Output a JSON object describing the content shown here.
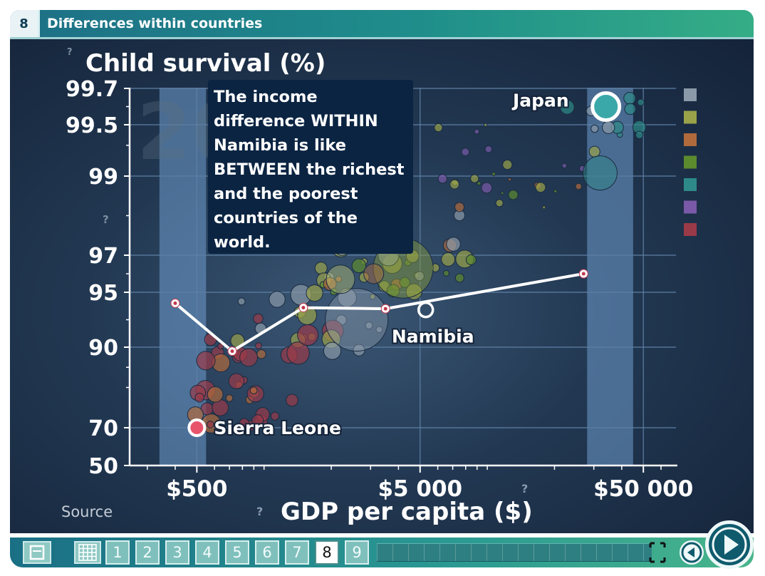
{
  "header": {
    "slide_number": "8",
    "title": "Differences within countries"
  },
  "chart_data": {
    "type": "scatter",
    "title": "",
    "ylabel": "Child survival (%)",
    "xlabel": "GDP per capita ($)",
    "x_scale": "log",
    "xlim": [
      250,
      70000
    ],
    "y_ticks": [
      "99.7",
      "99.5",
      "99",
      "97",
      "95",
      "90",
      "70",
      "50"
    ],
    "x_ticks": [
      "$500",
      "$5 000",
      "$50 000"
    ],
    "background_year": "20",
    "source_label": "Source",
    "help_marks": [
      "?",
      "?",
      "?",
      "?"
    ],
    "line_series": {
      "name": "Namibia income groups",
      "points": [
        {
          "x": 400,
          "y": 94
        },
        {
          "x": 720,
          "y": 89
        },
        {
          "x": 1500,
          "y": 93.6
        },
        {
          "x": 3500,
          "y": 93.5
        },
        {
          "x": 27000,
          "y": 96
        }
      ]
    },
    "labeled_points": [
      {
        "label": "Japan",
        "x": 34000,
        "y": 99.6,
        "color": "#3aa8a8"
      },
      {
        "label": "Namibia",
        "x": 5300,
        "y": 93.4,
        "color": "#ffffff"
      },
      {
        "label": "Sierra Leone",
        "x": 500,
        "y": 70,
        "color": "#e8546c"
      }
    ],
    "highlight_bands": [
      {
        "x_from": 340,
        "x_to": 550
      },
      {
        "x_from": 28000,
        "x_to": 45000
      }
    ],
    "legend_colors": [
      "#8a9aa8",
      "#9aa24a",
      "#b06a3c",
      "#5c8a2e",
      "#2e8a88",
      "#7a5aa8",
      "#9a3a48"
    ],
    "annotation": "The income difference WITHIN Namibia is like BETWEEN the richest and the poorest countries of the world."
  },
  "controls": {
    "pages": [
      "1",
      "2",
      "3",
      "4",
      "5",
      "6",
      "7",
      "8",
      "9"
    ],
    "active_page": "8"
  }
}
